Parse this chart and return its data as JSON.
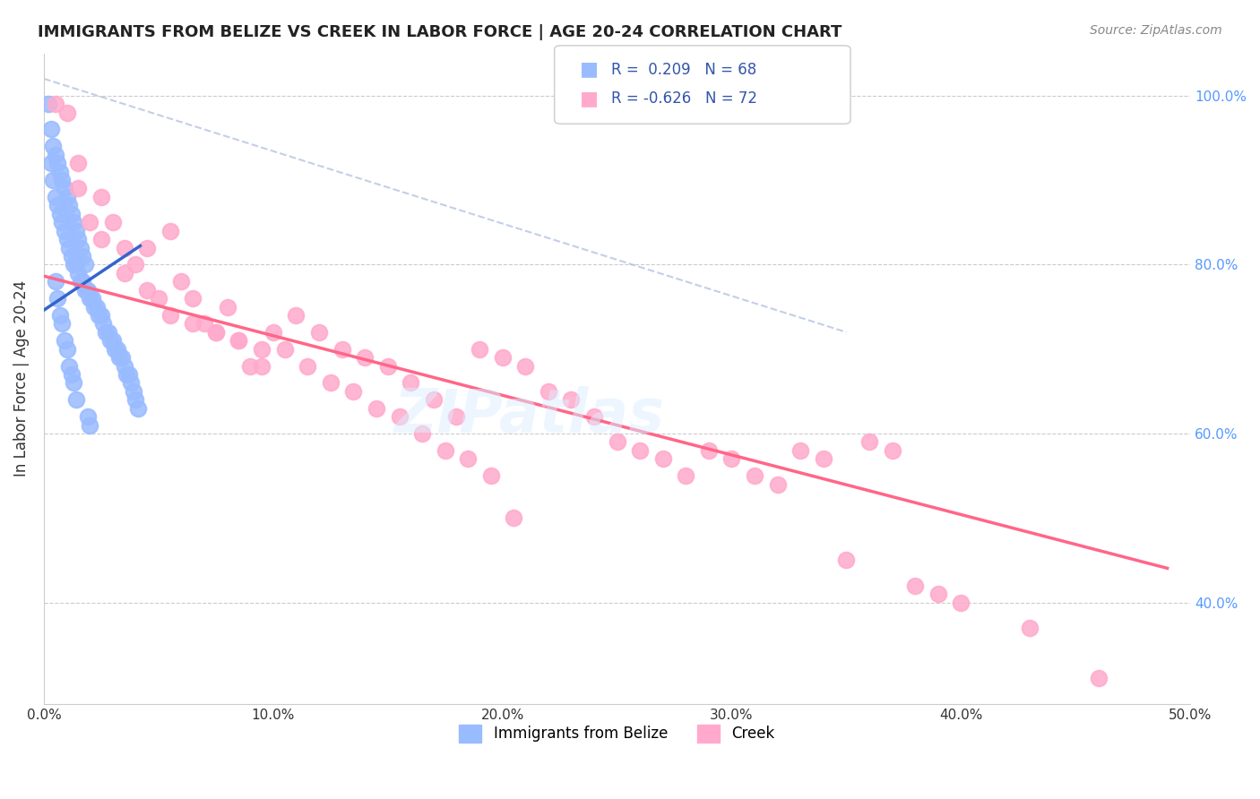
{
  "title": "IMMIGRANTS FROM BELIZE VS CREEK IN LABOR FORCE | AGE 20-24 CORRELATION CHART",
  "source": "Source: ZipAtlas.com",
  "ylabel": "In Labor Force | Age 20-24",
  "xmin": 0.0,
  "xmax": 0.5,
  "ymin": 0.28,
  "ymax": 1.05,
  "R_belize": 0.209,
  "N_belize": 68,
  "R_creek": -0.626,
  "N_creek": 72,
  "color_belize": "#99bbff",
  "color_creek": "#ffaacc",
  "color_belize_line": "#3366cc",
  "color_creek_line": "#ff6688",
  "color_ref_line": "#aabbdd",
  "legend_label_belize": "Immigrants from Belize",
  "legend_label_creek": "Creek",
  "belize_x": [
    0.002,
    0.003,
    0.004,
    0.005,
    0.006,
    0.007,
    0.008,
    0.009,
    0.01,
    0.011,
    0.012,
    0.013,
    0.014,
    0.015,
    0.016,
    0.017,
    0.018,
    0.019,
    0.02,
    0.021,
    0.022,
    0.023,
    0.024,
    0.025,
    0.026,
    0.027,
    0.028,
    0.029,
    0.03,
    0.031,
    0.032,
    0.033,
    0.034,
    0.035,
    0.036,
    0.037,
    0.038,
    0.039,
    0.04,
    0.041,
    0.003,
    0.004,
    0.005,
    0.006,
    0.007,
    0.008,
    0.009,
    0.01,
    0.011,
    0.012,
    0.013,
    0.014,
    0.015,
    0.016,
    0.017,
    0.018,
    0.019,
    0.02,
    0.005,
    0.006,
    0.007,
    0.008,
    0.009,
    0.01,
    0.011,
    0.012,
    0.013,
    0.014
  ],
  "belize_y": [
    0.99,
    0.92,
    0.9,
    0.88,
    0.87,
    0.86,
    0.85,
    0.84,
    0.83,
    0.82,
    0.81,
    0.8,
    0.8,
    0.79,
    0.78,
    0.78,
    0.77,
    0.77,
    0.76,
    0.76,
    0.75,
    0.75,
    0.74,
    0.74,
    0.73,
    0.72,
    0.72,
    0.71,
    0.71,
    0.7,
    0.7,
    0.69,
    0.69,
    0.68,
    0.67,
    0.67,
    0.66,
    0.65,
    0.64,
    0.63,
    0.96,
    0.94,
    0.93,
    0.92,
    0.91,
    0.9,
    0.89,
    0.88,
    0.87,
    0.86,
    0.85,
    0.84,
    0.83,
    0.82,
    0.81,
    0.8,
    0.62,
    0.61,
    0.78,
    0.76,
    0.74,
    0.73,
    0.71,
    0.7,
    0.68,
    0.67,
    0.66,
    0.64
  ],
  "creek_x": [
    0.005,
    0.01,
    0.015,
    0.02,
    0.025,
    0.03,
    0.035,
    0.04,
    0.045,
    0.05,
    0.055,
    0.06,
    0.065,
    0.07,
    0.075,
    0.08,
    0.085,
    0.09,
    0.095,
    0.1,
    0.11,
    0.12,
    0.13,
    0.14,
    0.15,
    0.16,
    0.17,
    0.18,
    0.19,
    0.2,
    0.21,
    0.22,
    0.23,
    0.24,
    0.25,
    0.26,
    0.27,
    0.28,
    0.29,
    0.3,
    0.31,
    0.32,
    0.33,
    0.34,
    0.35,
    0.36,
    0.37,
    0.38,
    0.39,
    0.4,
    0.015,
    0.025,
    0.035,
    0.045,
    0.055,
    0.065,
    0.075,
    0.085,
    0.095,
    0.105,
    0.115,
    0.125,
    0.135,
    0.145,
    0.155,
    0.165,
    0.175,
    0.185,
    0.195,
    0.205,
    0.43,
    0.46
  ],
  "creek_y": [
    0.99,
    0.98,
    0.92,
    0.85,
    0.88,
    0.85,
    0.82,
    0.8,
    0.82,
    0.76,
    0.84,
    0.78,
    0.76,
    0.73,
    0.72,
    0.75,
    0.71,
    0.68,
    0.68,
    0.72,
    0.74,
    0.72,
    0.7,
    0.69,
    0.68,
    0.66,
    0.64,
    0.62,
    0.7,
    0.69,
    0.68,
    0.65,
    0.64,
    0.62,
    0.59,
    0.58,
    0.57,
    0.55,
    0.58,
    0.57,
    0.55,
    0.54,
    0.58,
    0.57,
    0.45,
    0.59,
    0.58,
    0.42,
    0.41,
    0.4,
    0.89,
    0.83,
    0.79,
    0.77,
    0.74,
    0.73,
    0.72,
    0.71,
    0.7,
    0.7,
    0.68,
    0.66,
    0.65,
    0.63,
    0.62,
    0.6,
    0.58,
    0.57,
    0.55,
    0.5,
    0.37,
    0.31
  ]
}
